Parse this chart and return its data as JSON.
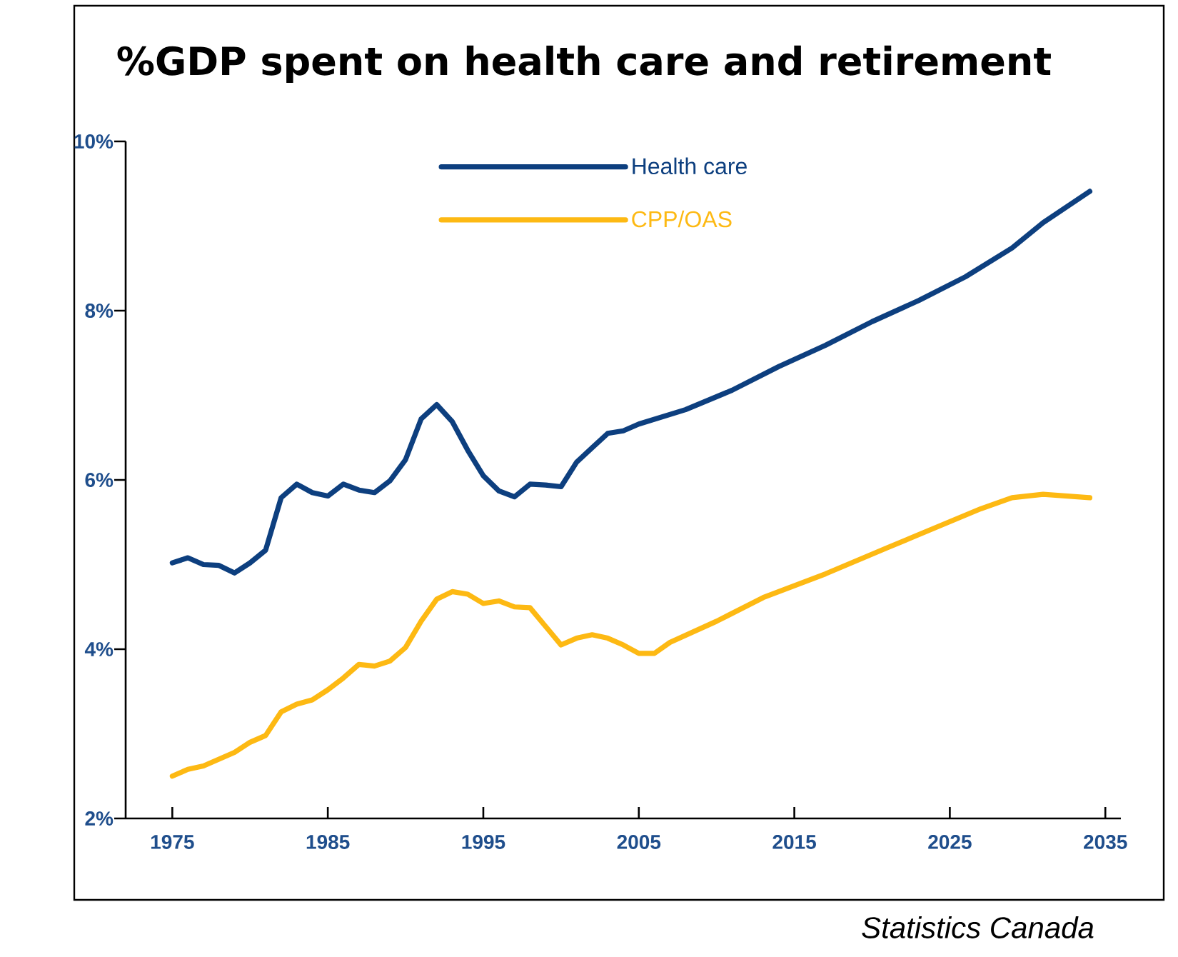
{
  "chart_data": {
    "type": "line",
    "title": "%GDP spent on health care and retirement",
    "annotations": [
      "Statistics Canada"
    ],
    "xlim": [
      1972,
      2036
    ],
    "xticks": [
      1975,
      1985,
      1995,
      2005,
      2015,
      2025,
      2035
    ],
    "ylim": [
      2,
      10
    ],
    "yticks": [
      {
        "value": 2,
        "label": "2%"
      },
      {
        "value": 4,
        "label": "4%"
      },
      {
        "value": 6,
        "label": "6%"
      },
      {
        "value": 8,
        "label": "8%"
      },
      {
        "value": 10,
        "label": "10%"
      }
    ],
    "grid": false,
    "legend": "top",
    "line_style": "solid",
    "series": [
      {
        "name": "Health care",
        "color": "#0d3f7f",
        "x": [
          1975,
          1976,
          1977,
          1978,
          1979,
          1980,
          1981,
          1982,
          1983,
          1984,
          1985,
          1986,
          1987,
          1988,
          1989,
          1990,
          1991,
          1992,
          1993,
          1994,
          1995,
          1996,
          1997,
          1998,
          1999,
          2000,
          2001,
          2002,
          2003,
          2004,
          2005,
          2008,
          2011,
          2014,
          2017,
          2020,
          2023,
          2026,
          2029,
          2031,
          2034
        ],
        "values": [
          5.02,
          5.08,
          5.0,
          4.99,
          4.9,
          5.02,
          5.17,
          5.79,
          5.95,
          5.85,
          5.81,
          5.95,
          5.88,
          5.85,
          5.99,
          6.24,
          6.72,
          6.89,
          6.69,
          6.35,
          6.05,
          5.87,
          5.8,
          5.95,
          5.94,
          5.92,
          6.21,
          6.38,
          6.55,
          6.58,
          6.66,
          6.83,
          7.06,
          7.34,
          7.59,
          7.87,
          8.12,
          8.4,
          8.74,
          9.04,
          9.41
        ]
      },
      {
        "name": "CPP/OAS",
        "color": "#fdb913",
        "x": [
          1975,
          1976,
          1977,
          1978,
          1979,
          1980,
          1981,
          1982,
          1983,
          1984,
          1985,
          1986,
          1987,
          1988,
          1989,
          1990,
          1991,
          1992,
          1993,
          1994,
          1995,
          1996,
          1997,
          1998,
          1999,
          2000,
          2001,
          2002,
          2003,
          2004,
          2005,
          2006,
          2007,
          2010,
          2013,
          2017,
          2021,
          2024,
          2027,
          2029,
          2031,
          2034
        ],
        "values": [
          2.5,
          2.58,
          2.62,
          2.7,
          2.78,
          2.9,
          2.98,
          3.26,
          3.35,
          3.4,
          3.52,
          3.66,
          3.82,
          3.8,
          3.86,
          4.02,
          4.33,
          4.59,
          4.68,
          4.65,
          4.54,
          4.57,
          4.5,
          4.49,
          4.27,
          4.05,
          4.13,
          4.17,
          4.13,
          4.05,
          3.95,
          3.95,
          4.08,
          4.33,
          4.61,
          4.89,
          5.2,
          5.43,
          5.66,
          5.79,
          5.83,
          5.79
        ]
      }
    ]
  }
}
